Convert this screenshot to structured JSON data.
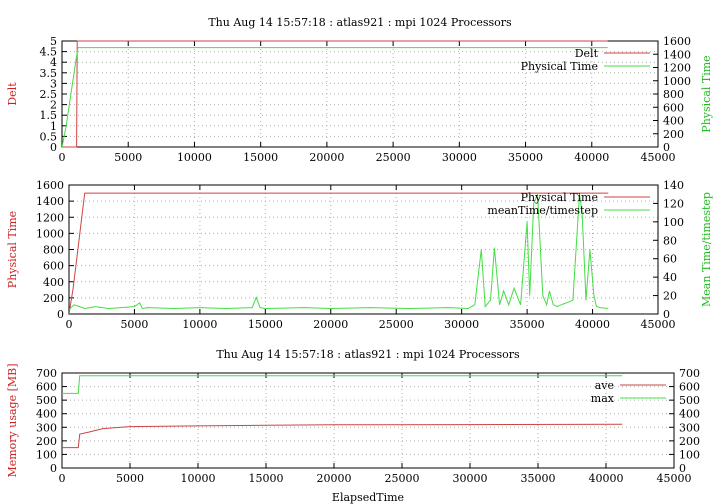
{
  "colors": {
    "red": "#cc4444",
    "green": "#44dd44",
    "grid": "#b0b0b0"
  },
  "chart_data": [
    {
      "type": "line",
      "title": "Thu Aug 14 15:57:18 : atlas921 : mpi 1024 Processors",
      "xlabel": "",
      "ylabel": "Delt",
      "y2label": "Physical Time",
      "xlim": [
        0,
        45000
      ],
      "ylim": [
        0,
        5
      ],
      "y2lim": [
        0,
        1600
      ],
      "xticks": [
        0,
        5000,
        10000,
        15000,
        20000,
        25000,
        30000,
        35000,
        40000,
        45000
      ],
      "yticks": [
        0,
        0.5,
        1,
        1.5,
        2,
        2.5,
        3,
        3.5,
        4,
        4.5,
        5
      ],
      "y2ticks": [
        0,
        200,
        400,
        600,
        800,
        1000,
        1200,
        1400,
        1600
      ],
      "legend": "top-right",
      "grid": true,
      "series": [
        {
          "name": "Delt",
          "axis": "y",
          "color": "#cc4444",
          "x": [
            0,
            1100,
            1150,
            1200,
            41200
          ],
          "y": [
            0,
            0,
            5,
            5,
            5
          ]
        },
        {
          "name": "Physical Time",
          "axis": "y2",
          "color": "#44dd44",
          "x": [
            0,
            300,
            600,
            900,
            1200,
            1300,
            41200
          ],
          "y": [
            0,
            300,
            700,
            1100,
            1500,
            1500,
            1500
          ]
        }
      ]
    },
    {
      "type": "line",
      "title": "",
      "xlabel": "",
      "ylabel": "Physical Time",
      "y2label": "Mean Time/timestep",
      "xlim": [
        0,
        45000
      ],
      "ylim": [
        0,
        1600
      ],
      "y2lim": [
        0,
        140
      ],
      "xticks": [
        0,
        5000,
        10000,
        15000,
        20000,
        25000,
        30000,
        35000,
        40000,
        45000
      ],
      "yticks": [
        0,
        200,
        400,
        600,
        800,
        1000,
        1200,
        1400,
        1600
      ],
      "y2ticks": [
        0,
        20,
        40,
        60,
        80,
        100,
        120,
        140
      ],
      "legend": "top-right",
      "grid": true,
      "series": [
        {
          "name": "Physical Time",
          "axis": "y",
          "color": "#cc4444",
          "x": [
            0,
            300,
            600,
            900,
            1200,
            1300,
            41200
          ],
          "y": [
            0,
            300,
            700,
            1100,
            1500,
            1500,
            1500
          ]
        },
        {
          "name": "meanTime/timestep",
          "axis": "y2",
          "color": "#44dd44",
          "x": [
            0,
            400,
            800,
            1200,
            2000,
            3000,
            4000,
            5000,
            5400,
            5600,
            6000,
            8000,
            10000,
            12000,
            14000,
            14300,
            14600,
            15000,
            18000,
            20000,
            23000,
            26000,
            29000,
            30500,
            31000,
            31500,
            31800,
            32200,
            32500,
            32900,
            33200,
            33600,
            34000,
            34500,
            35000,
            35200,
            35500,
            35800,
            36200,
            36500,
            36700,
            37000,
            37300,
            37600,
            38000,
            38500,
            39000,
            39200,
            39500,
            39800,
            40100,
            40300,
            40600,
            41200
          ],
          "y": [
            5,
            10,
            8,
            6,
            8,
            6,
            7,
            8,
            12,
            6,
            7,
            6,
            7,
            6,
            7,
            18,
            7,
            6,
            7,
            6,
            7,
            6,
            7,
            6,
            10,
            70,
            8,
            15,
            72,
            10,
            25,
            10,
            28,
            10,
            100,
            20,
            120,
            130,
            20,
            10,
            25,
            10,
            8,
            10,
            12,
            15,
            130,
            110,
            15,
            70,
            20,
            8,
            7,
            6
          ]
        }
      ]
    },
    {
      "type": "line",
      "title": "Thu Aug 14 15:57:18 : atlas921 : mpi 1024 Processors",
      "xlabel": "ElapsedTime",
      "ylabel": "Memory usage [MB]",
      "y2label": "",
      "xlim": [
        0,
        45000
      ],
      "ylim": [
        0,
        700
      ],
      "y2lim": [
        0,
        700
      ],
      "xticks": [
        0,
        5000,
        10000,
        15000,
        20000,
        25000,
        30000,
        35000,
        40000,
        45000
      ],
      "yticks": [
        0,
        100,
        200,
        300,
        400,
        500,
        600,
        700
      ],
      "y2ticks": [
        0,
        100,
        200,
        300,
        400,
        500,
        600,
        700
      ],
      "legend": "top-right",
      "grid": true,
      "series": [
        {
          "name": "ave",
          "axis": "y",
          "color": "#cc4444",
          "x": [
            0,
            1200,
            1300,
            2000,
            3000,
            5000,
            10000,
            15000,
            20000,
            30000,
            41200
          ],
          "y": [
            150,
            150,
            250,
            265,
            290,
            305,
            310,
            315,
            318,
            320,
            322
          ]
        },
        {
          "name": "max",
          "axis": "y",
          "color": "#44dd44",
          "x": [
            0,
            1200,
            1300,
            41200
          ],
          "y": [
            550,
            550,
            680,
            680
          ]
        }
      ]
    }
  ]
}
